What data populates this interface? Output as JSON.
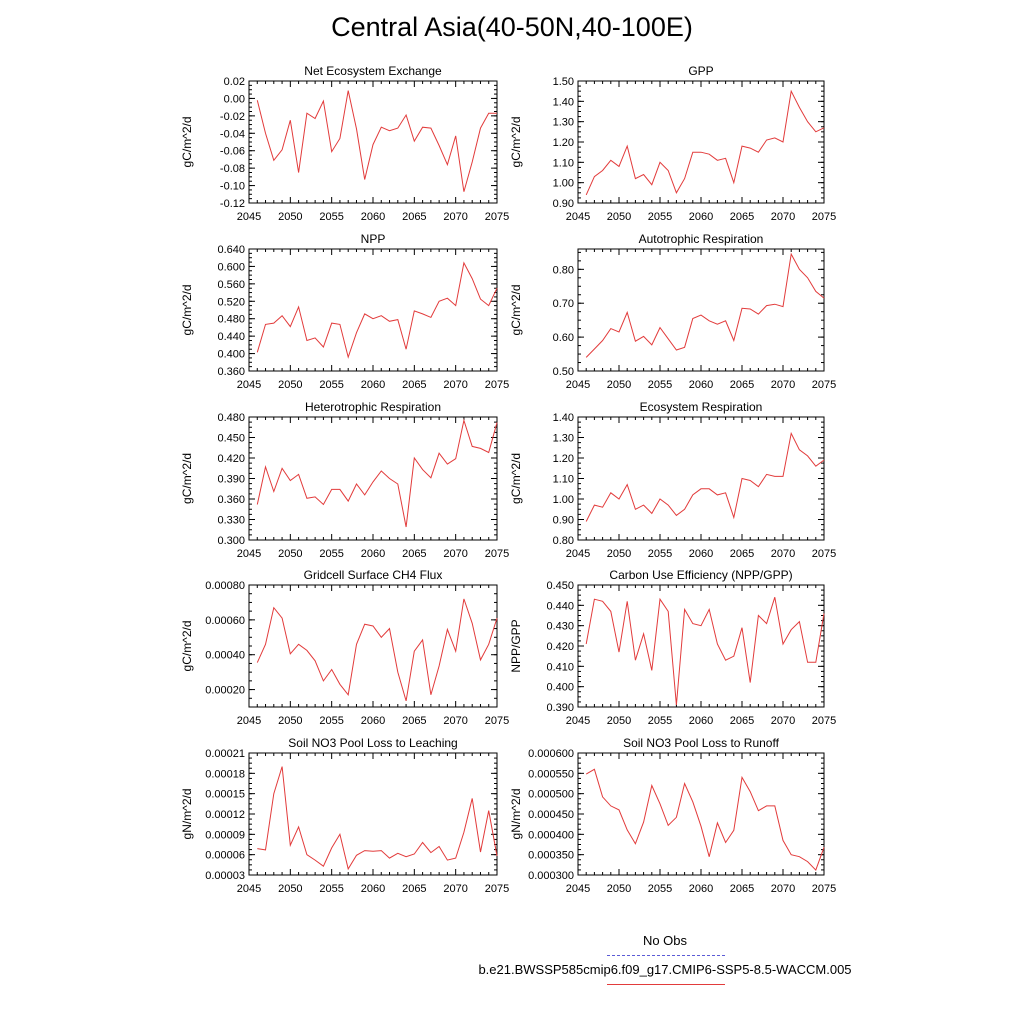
{
  "title": "Central Asia(40-50N,40-100E)",
  "legend": {
    "obs_label": "No Obs",
    "case_label": "b.e21.BWSSP585cmip6.f09_g17.CMIP6-SSP5-8.5-WACCM.005",
    "obs_color": "#5b5bd6",
    "case_color": "#e23b3b"
  },
  "chart_data": [
    {
      "type": "line",
      "title": "Net Ecosystem Exchange",
      "ylabel": "gC/m^2/d",
      "xlim": [
        2045,
        2075
      ],
      "ylim": [
        -0.12,
        0.02
      ],
      "yticks": [
        "-0.12",
        "-0.10",
        "-0.08",
        "-0.06",
        "-0.04",
        "-0.02",
        "0.00",
        "0.02"
      ],
      "xticks": [
        "2045",
        "2050",
        "2055",
        "2060",
        "2065",
        "2070",
        "2075"
      ],
      "x": [
        2046,
        2047,
        2048,
        2049,
        2050,
        2051,
        2052,
        2053,
        2054,
        2055,
        2056,
        2057,
        2058,
        2059,
        2060,
        2061,
        2062,
        2063,
        2064,
        2065,
        2066,
        2067,
        2068,
        2069,
        2070,
        2071,
        2072,
        2073,
        2074,
        2075
      ],
      "series": [
        {
          "values": [
            -0.002,
            -0.04,
            -0.071,
            -0.059,
            -0.025,
            -0.085,
            -0.017,
            -0.023,
            -0.003,
            -0.061,
            -0.046,
            0.009,
            -0.035,
            -0.093,
            -0.053,
            -0.033,
            -0.037,
            -0.034,
            -0.019,
            -0.049,
            -0.033,
            -0.034,
            -0.054,
            -0.076,
            -0.043,
            -0.107,
            -0.073,
            -0.034,
            -0.017,
            -0.017
          ]
        }
      ]
    },
    {
      "type": "line",
      "title": "GPP",
      "ylabel": "gC/m^2/d",
      "xlim": [
        2045,
        2075
      ],
      "ylim": [
        0.9,
        1.5
      ],
      "yticks": [
        "0.90",
        "1.00",
        "1.10",
        "1.20",
        "1.30",
        "1.40",
        "1.50"
      ],
      "xticks": [
        "2045",
        "2050",
        "2055",
        "2060",
        "2065",
        "2070",
        "2075"
      ],
      "x": [
        2046,
        2047,
        2048,
        2049,
        2050,
        2051,
        2052,
        2053,
        2054,
        2055,
        2056,
        2057,
        2058,
        2059,
        2060,
        2061,
        2062,
        2063,
        2064,
        2065,
        2066,
        2067,
        2068,
        2069,
        2070,
        2071,
        2072,
        2073,
        2074,
        2075
      ],
      "series": [
        {
          "values": [
            0.94,
            1.03,
            1.06,
            1.11,
            1.08,
            1.18,
            1.02,
            1.04,
            0.99,
            1.1,
            1.06,
            0.95,
            1.02,
            1.15,
            1.15,
            1.14,
            1.11,
            1.12,
            1.0,
            1.18,
            1.17,
            1.15,
            1.21,
            1.22,
            1.2,
            1.45,
            1.37,
            1.3,
            1.25,
            1.27
          ]
        }
      ]
    },
    {
      "type": "line",
      "title": "NPP",
      "ylabel": "gC/m^2/d",
      "xlim": [
        2045,
        2075
      ],
      "ylim": [
        0.36,
        0.64
      ],
      "yticks": [
        "0.360",
        "0.400",
        "0.440",
        "0.480",
        "0.520",
        "0.560",
        "0.600",
        "0.640"
      ],
      "xticks": [
        "2045",
        "2050",
        "2055",
        "2060",
        "2065",
        "2070",
        "2075"
      ],
      "x": [
        2046,
        2047,
        2048,
        2049,
        2050,
        2051,
        2052,
        2053,
        2054,
        2055,
        2056,
        2057,
        2058,
        2059,
        2060,
        2061,
        2062,
        2063,
        2064,
        2065,
        2066,
        2067,
        2068,
        2069,
        2070,
        2071,
        2072,
        2073,
        2074,
        2075
      ],
      "series": [
        {
          "values": [
            0.403,
            0.467,
            0.47,
            0.487,
            0.462,
            0.507,
            0.43,
            0.436,
            0.415,
            0.47,
            0.467,
            0.392,
            0.448,
            0.491,
            0.48,
            0.487,
            0.474,
            0.478,
            0.41,
            0.498,
            0.491,
            0.483,
            0.52,
            0.527,
            0.51,
            0.608,
            0.572,
            0.525,
            0.51,
            0.55
          ]
        }
      ]
    },
    {
      "type": "line",
      "title": "Autotrophic Respiration",
      "ylabel": "gC/m^2/d",
      "xlim": [
        2045,
        2075
      ],
      "ylim": [
        0.5,
        0.86
      ],
      "yticks": [
        "0.50",
        "0.60",
        "0.70",
        "0.80"
      ],
      "xticks": [
        "2045",
        "2050",
        "2055",
        "2060",
        "2065",
        "2070",
        "2075"
      ],
      "x": [
        2046,
        2047,
        2048,
        2049,
        2050,
        2051,
        2052,
        2053,
        2054,
        2055,
        2056,
        2057,
        2058,
        2059,
        2060,
        2061,
        2062,
        2063,
        2064,
        2065,
        2066,
        2067,
        2068,
        2069,
        2070,
        2071,
        2072,
        2073,
        2074,
        2075
      ],
      "series": [
        {
          "values": [
            0.54,
            0.565,
            0.59,
            0.625,
            0.615,
            0.673,
            0.588,
            0.602,
            0.577,
            0.628,
            0.595,
            0.562,
            0.57,
            0.655,
            0.665,
            0.648,
            0.638,
            0.648,
            0.59,
            0.685,
            0.683,
            0.668,
            0.693,
            0.697,
            0.69,
            0.845,
            0.8,
            0.775,
            0.735,
            0.715
          ]
        }
      ]
    },
    {
      "type": "line",
      "title": "Heterotrophic Respiration",
      "ylabel": "gC/m^2/d",
      "xlim": [
        2045,
        2075
      ],
      "ylim": [
        0.3,
        0.48
      ],
      "yticks": [
        "0.300",
        "0.330",
        "0.360",
        "0.390",
        "0.420",
        "0.450",
        "0.480"
      ],
      "xticks": [
        "2045",
        "2050",
        "2055",
        "2060",
        "2065",
        "2070",
        "2075"
      ],
      "x": [
        2046,
        2047,
        2048,
        2049,
        2050,
        2051,
        2052,
        2053,
        2054,
        2055,
        2056,
        2057,
        2058,
        2059,
        2060,
        2061,
        2062,
        2063,
        2064,
        2065,
        2066,
        2067,
        2068,
        2069,
        2070,
        2071,
        2072,
        2073,
        2074,
        2075
      ],
      "series": [
        {
          "values": [
            0.352,
            0.407,
            0.371,
            0.405,
            0.387,
            0.396,
            0.361,
            0.363,
            0.352,
            0.374,
            0.374,
            0.357,
            0.382,
            0.366,
            0.385,
            0.401,
            0.39,
            0.382,
            0.319,
            0.42,
            0.403,
            0.391,
            0.427,
            0.411,
            0.419,
            0.475,
            0.437,
            0.434,
            0.428,
            0.472
          ]
        }
      ]
    },
    {
      "type": "line",
      "title": "Ecosystem Respiration",
      "ylabel": "gC/m^2/d",
      "xlim": [
        2045,
        2075
      ],
      "ylim": [
        0.8,
        1.4
      ],
      "yticks": [
        "0.80",
        "0.90",
        "1.00",
        "1.10",
        "1.20",
        "1.30",
        "1.40"
      ],
      "xticks": [
        "2045",
        "2050",
        "2055",
        "2060",
        "2065",
        "2070",
        "2075"
      ],
      "x": [
        2046,
        2047,
        2048,
        2049,
        2050,
        2051,
        2052,
        2053,
        2054,
        2055,
        2056,
        2057,
        2058,
        2059,
        2060,
        2061,
        2062,
        2063,
        2064,
        2065,
        2066,
        2067,
        2068,
        2069,
        2070,
        2071,
        2072,
        2073,
        2074,
        2075
      ],
      "series": [
        {
          "values": [
            0.89,
            0.97,
            0.96,
            1.03,
            1.0,
            1.07,
            0.95,
            0.97,
            0.93,
            1.0,
            0.97,
            0.92,
            0.95,
            1.02,
            1.05,
            1.05,
            1.02,
            1.03,
            0.91,
            1.1,
            1.09,
            1.06,
            1.12,
            1.11,
            1.11,
            1.32,
            1.24,
            1.21,
            1.16,
            1.19
          ]
        }
      ]
    },
    {
      "type": "line",
      "title": "Gridcell Surface CH4 Flux",
      "ylabel": "gC/m^2/d",
      "xlim": [
        2045,
        2075
      ],
      "ylim": [
        0.0001,
        0.0008
      ],
      "yticks": [
        "0.00020",
        "0.00040",
        "0.00060",
        "0.00080"
      ],
      "ytick_values": [
        0.0002,
        0.0004,
        0.0006,
        0.0008
      ],
      "xticks": [
        "2045",
        "2050",
        "2055",
        "2060",
        "2065",
        "2070",
        "2075"
      ],
      "x": [
        2046,
        2047,
        2048,
        2049,
        2050,
        2051,
        2052,
        2053,
        2054,
        2055,
        2056,
        2057,
        2058,
        2059,
        2060,
        2061,
        2062,
        2063,
        2064,
        2065,
        2066,
        2067,
        2068,
        2069,
        2070,
        2071,
        2072,
        2073,
        2074,
        2075
      ],
      "series": [
        {
          "values": [
            0.000355,
            0.00046,
            0.00067,
            0.00061,
            0.000405,
            0.00046,
            0.000425,
            0.000365,
            0.00025,
            0.000315,
            0.00023,
            0.00017,
            0.00046,
            0.000575,
            0.000565,
            0.0005,
            0.00055,
            0.0003,
            0.000135,
            0.00042,
            0.000485,
            0.00017,
            0.000335,
            0.000545,
            0.00042,
            0.00072,
            0.00058,
            0.00037,
            0.00046,
            0.00061
          ]
        }
      ]
    },
    {
      "type": "line",
      "title": "Carbon Use Efficiency (NPP/GPP)",
      "ylabel": "NPP/GPP",
      "xlim": [
        2045,
        2075
      ],
      "ylim": [
        0.39,
        0.45
      ],
      "yticks": [
        "0.390",
        "0.400",
        "0.410",
        "0.420",
        "0.430",
        "0.440",
        "0.450"
      ],
      "xticks": [
        "2045",
        "2050",
        "2055",
        "2060",
        "2065",
        "2070",
        "2075"
      ],
      "x": [
        2046,
        2047,
        2048,
        2049,
        2050,
        2051,
        2052,
        2053,
        2054,
        2055,
        2056,
        2057,
        2058,
        2059,
        2060,
        2061,
        2062,
        2063,
        2064,
        2065,
        2066,
        2067,
        2068,
        2069,
        2070,
        2071,
        2072,
        2073,
        2074,
        2075
      ],
      "series": [
        {
          "values": [
            0.421,
            0.443,
            0.442,
            0.437,
            0.417,
            0.442,
            0.413,
            0.426,
            0.408,
            0.443,
            0.437,
            0.391,
            0.438,
            0.431,
            0.43,
            0.438,
            0.421,
            0.413,
            0.415,
            0.429,
            0.402,
            0.435,
            0.431,
            0.444,
            0.421,
            0.428,
            0.432,
            0.412,
            0.412,
            0.436
          ]
        }
      ]
    },
    {
      "type": "line",
      "title": "Soil NO3 Pool Loss to Leaching",
      "ylabel": "gN/m^2/d",
      "xlim": [
        2045,
        2075
      ],
      "ylim": [
        3e-05,
        0.00021
      ],
      "yticks": [
        "0.00003",
        "0.00006",
        "0.00009",
        "0.00012",
        "0.00015",
        "0.00018",
        "0.00021"
      ],
      "xticks": [
        "2045",
        "2050",
        "2055",
        "2060",
        "2065",
        "2070",
        "2075"
      ],
      "x": [
        2046,
        2047,
        2048,
        2049,
        2050,
        2051,
        2052,
        2053,
        2054,
        2055,
        2056,
        2057,
        2058,
        2059,
        2060,
        2061,
        2062,
        2063,
        2064,
        2065,
        2066,
        2067,
        2068,
        2069,
        2070,
        2071,
        2072,
        2073,
        2074,
        2075
      ],
      "series": [
        {
          "values": [
            6.9e-05,
            6.7e-05,
            0.00015,
            0.00019,
            7.4e-05,
            0.000101,
            6e-05,
            5.2e-05,
            4.3e-05,
            7e-05,
            9e-05,
            3.9e-05,
            5.9e-05,
            6.6e-05,
            6.5e-05,
            6.6e-05,
            5.5e-05,
            6.2e-05,
            5.7e-05,
            6.1e-05,
            7.8e-05,
            6.3e-05,
            7.2e-05,
            5.2e-05,
            5.5e-05,
            9.3e-05,
            0.000143,
            6.4e-05,
            0.000125,
            5.8e-05
          ]
        }
      ]
    },
    {
      "type": "line",
      "title": "Soil NO3 Pool Loss to Runoff",
      "ylabel": "gN/m^2/d",
      "xlim": [
        2045,
        2075
      ],
      "ylim": [
        0.0003,
        0.0006
      ],
      "yticks": [
        "0.000300",
        "0.000350",
        "0.000400",
        "0.000450",
        "0.000500",
        "0.000550",
        "0.000600"
      ],
      "xticks": [
        "2045",
        "2050",
        "2055",
        "2060",
        "2065",
        "2070",
        "2075"
      ],
      "x": [
        2046,
        2047,
        2048,
        2049,
        2050,
        2051,
        2052,
        2053,
        2054,
        2055,
        2056,
        2057,
        2058,
        2059,
        2060,
        2061,
        2062,
        2063,
        2064,
        2065,
        2066,
        2067,
        2068,
        2069,
        2070,
        2071,
        2072,
        2073,
        2074,
        2075
      ],
      "series": [
        {
          "values": [
            0.000548,
            0.00056,
            0.000492,
            0.00047,
            0.00046,
            0.000411,
            0.000377,
            0.00043,
            0.00052,
            0.000475,
            0.000422,
            0.000442,
            0.000525,
            0.00048,
            0.00042,
            0.000345,
            0.000428,
            0.00038,
            0.00041,
            0.00054,
            0.000505,
            0.000458,
            0.00047,
            0.00047,
            0.000385,
            0.00035,
            0.000345,
            0.000333,
            0.000312,
            0.000368
          ]
        }
      ]
    }
  ]
}
